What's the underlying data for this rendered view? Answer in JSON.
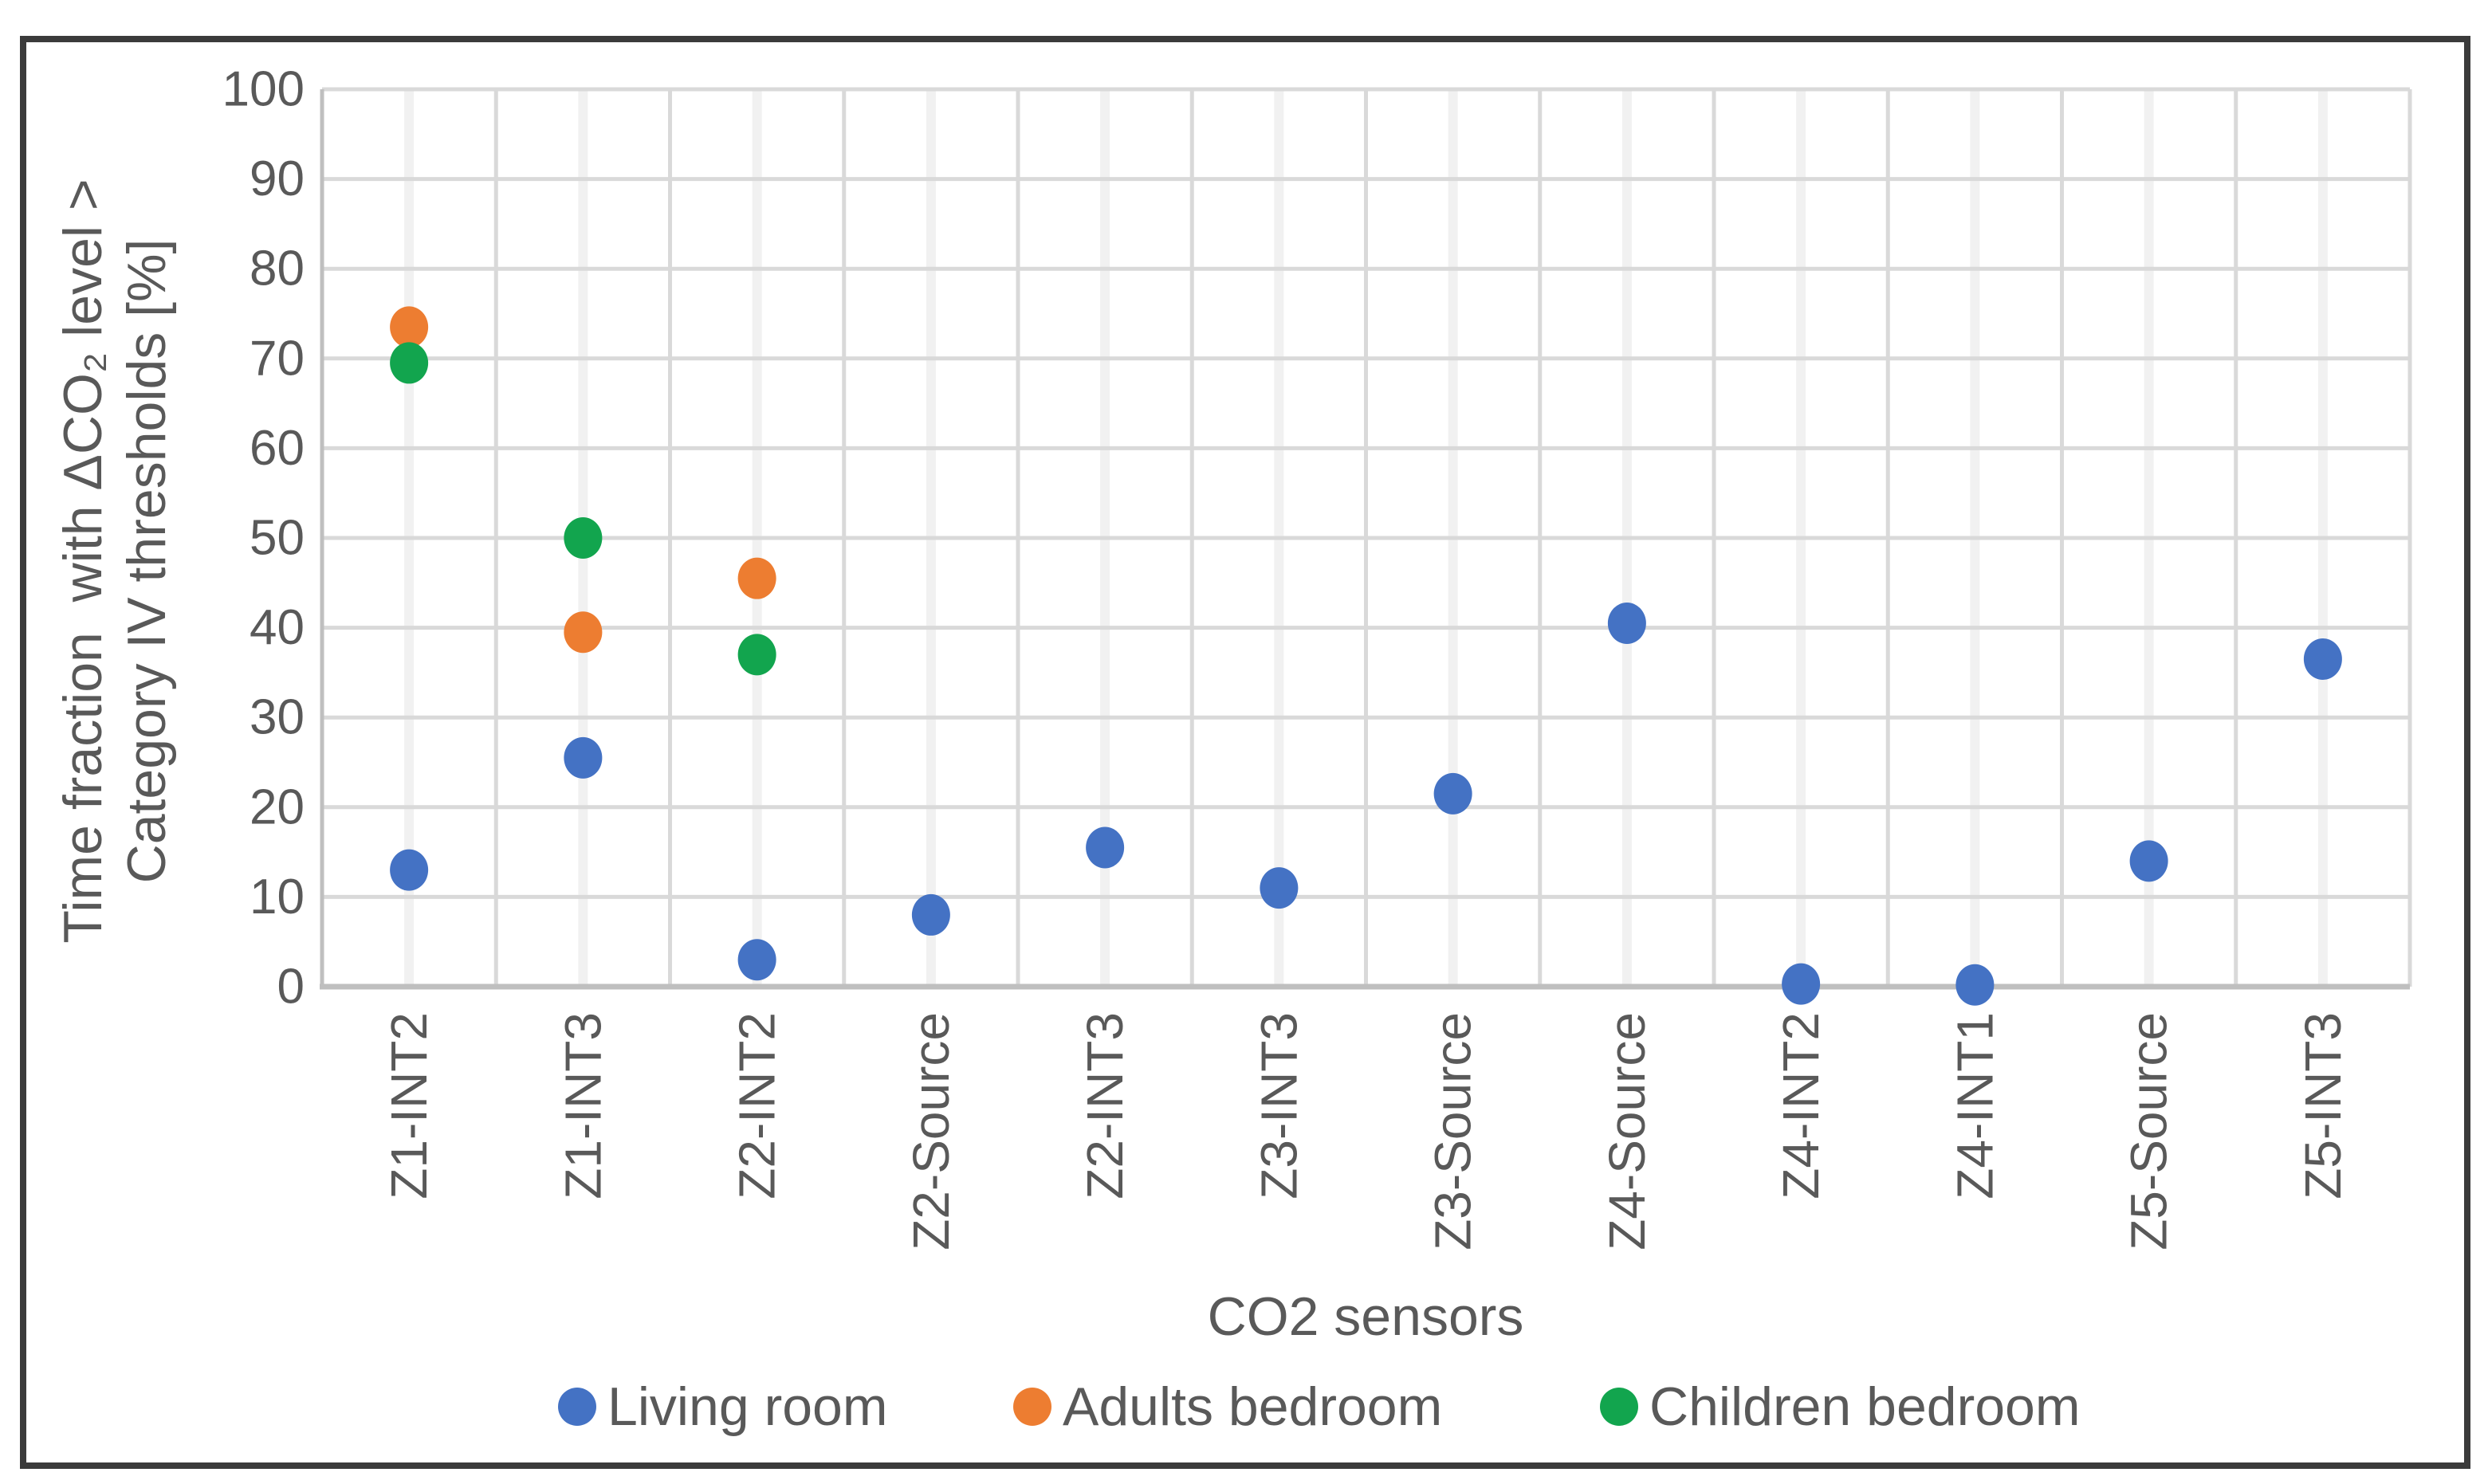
{
  "figure": {
    "background_color": "#FFFFFF",
    "border_color": "#3B3B3B"
  },
  "chart_data": {
    "type": "scatter",
    "xlabel": "CO2 sensors",
    "ylabel_line1": "Time fraction  with ΔCO₂ level >",
    "ylabel_line2": "Category IV thresholds [%]",
    "categories": [
      "Z1-INT2",
      "Z1-INT3",
      "Z2-INT2",
      "Z2-Source",
      "Z2-INT3",
      "Z3-INT3",
      "Z3-Source",
      "Z4-Source",
      "Z4-INT2",
      "Z4-INT1",
      "Z5-Source",
      "Z5-INT3"
    ],
    "y_ticks": [
      0,
      10,
      20,
      30,
      40,
      50,
      60,
      70,
      80,
      90,
      100
    ],
    "ylim": [
      0,
      100
    ],
    "grid": true,
    "legend_position": "bottom",
    "series": [
      {
        "name": "Living room",
        "color": "#4472C4",
        "values": [
          13,
          25.5,
          3,
          8,
          15.5,
          11,
          21.5,
          40.5,
          0.3,
          0.2,
          14,
          36.5
        ]
      },
      {
        "name": "Adults bedroom",
        "color": "#ED7D31",
        "values": [
          73.5,
          39.5,
          45.5,
          null,
          null,
          null,
          null,
          null,
          null,
          null,
          null,
          null
        ]
      },
      {
        "name": "Children bedroom",
        "color": "#12A54E",
        "values": [
          69.5,
          50,
          37,
          null,
          null,
          null,
          null,
          null,
          null,
          null,
          null,
          null
        ]
      }
    ],
    "colors": {
      "text": "#595959",
      "gridline": "#D9D9D9",
      "column_line": "#F1F1F1",
      "axis_line": "#BFBFBF"
    }
  }
}
